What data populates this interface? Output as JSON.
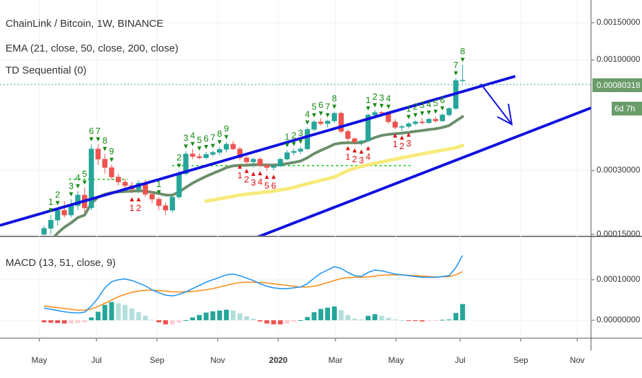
{
  "header": {
    "title": "ChainLink / Bitcoin, 1W, BINANCE",
    "ema_label": "EMA (21, close, 50, close, 200, close)",
    "td_label": "TD Sequential (0)",
    "macd_label": "MACD (13, 51, close, 9)"
  },
  "price_axis": {
    "ticks": [
      {
        "label": "0.00150000",
        "v": 0.0015
      },
      {
        "label": "0.00100000",
        "v": 0.001
      },
      {
        "label": "0.00030000",
        "v": 0.0003
      },
      {
        "label": "0.00015000",
        "v": 0.00015
      }
    ],
    "current_price": "0.00080318",
    "countdown": "6d 7h",
    "current_color": "#6a9c6a",
    "countdown_color": "#6a9c6a"
  },
  "macd_axis": {
    "ticks": [
      {
        "label": "0.00010000",
        "v": 0.0001
      },
      {
        "label": "0.00000000",
        "v": 0
      }
    ]
  },
  "time_axis": {
    "labels": [
      {
        "label": "May",
        "bold": false
      },
      {
        "label": "Jul",
        "bold": false
      },
      {
        "label": "Sep",
        "bold": false
      },
      {
        "label": "Nov",
        "bold": false
      },
      {
        "label": "2020",
        "bold": true
      },
      {
        "label": "Mar",
        "bold": false
      },
      {
        "label": "May",
        "bold": false
      },
      {
        "label": "Jul",
        "bold": false
      },
      {
        "label": "Sep",
        "bold": false
      },
      {
        "label": "Nov",
        "bold": false
      }
    ]
  },
  "colors": {
    "up": "#26a69a",
    "down": "#ef5350",
    "channel": "#1010e0",
    "ema_fast": "#6b8e6b",
    "ema_slow": "#f7ea7a",
    "macd": "#2196f3",
    "signal": "#ff8c1a",
    "buy": "#138a13",
    "sell": "#e01010"
  },
  "chart_data": {
    "type": "candlestick",
    "candles": [
      [
        0.00015,
        0.000165,
        0.00014,
        0.00016
      ],
      [
        0.00016,
        0.000185,
        0.00015,
        0.000175
      ],
      [
        0.000175,
        0.0002,
        0.000165,
        0.000195
      ],
      [
        0.000195,
        0.000215,
        0.00018,
        0.000185
      ],
      [
        0.000185,
        0.00022,
        0.00018,
        0.000205
      ],
      [
        0.000205,
        0.00024,
        0.000195,
        0.00023
      ],
      [
        0.00023,
        0.00025,
        0.00019,
        0.0002
      ],
      [
        0.0002,
        0.0004,
        0.000195,
        0.00038
      ],
      [
        0.00038,
        0.0004,
        0.00032,
        0.00034
      ],
      [
        0.00034,
        0.00036,
        0.00029,
        0.00031
      ],
      [
        0.00031,
        0.00032,
        0.00027,
        0.00028
      ],
      [
        0.00028,
        0.00029,
        0.000255,
        0.000265
      ],
      [
        0.000265,
        0.000275,
        0.000245,
        0.000255
      ],
      [
        0.000255,
        0.000265,
        0.000235,
        0.000245
      ],
      [
        0.000245,
        0.00027,
        0.000235,
        0.000262
      ],
      [
        0.000262,
        0.000272,
        0.000225,
        0.000232
      ],
      [
        0.000232,
        0.00024,
        0.00021,
        0.00022
      ],
      [
        0.00022,
        0.000225,
        0.000195,
        0.000205
      ],
      [
        0.000205,
        0.000212,
        0.000185,
        0.000195
      ],
      [
        0.000195,
        0.00023,
        0.00019,
        0.000225
      ],
      [
        0.000225,
        0.0003,
        0.00022,
        0.00029
      ],
      [
        0.00029,
        0.00037,
        0.000285,
        0.00036
      ],
      [
        0.00036,
        0.00038,
        0.00034,
        0.00035
      ],
      [
        0.00035,
        0.000362,
        0.00034,
        0.000345
      ],
      [
        0.000345,
        0.000368,
        0.00034,
        0.000358
      ],
      [
        0.000358,
        0.000372,
        0.00035,
        0.000366
      ],
      [
        0.000366,
        0.000388,
        0.000355,
        0.000378
      ],
      [
        0.000378,
        0.00041,
        0.000365,
        0.0004
      ],
      [
        0.0004,
        0.000415,
        0.000375,
        0.00038
      ],
      [
        0.00038,
        0.00039,
        0.000335,
        0.000345
      ],
      [
        0.000345,
        0.000352,
        0.00032,
        0.00033
      ],
      [
        0.00033,
        0.000345,
        0.00031,
        0.00034
      ],
      [
        0.00034,
        0.000348,
        0.000312,
        0.000318
      ],
      [
        0.000318,
        0.000325,
        0.0003,
        0.00031
      ],
      [
        0.00031,
        0.00032,
        0.0003,
        0.000315
      ],
      [
        0.000315,
        0.000345,
        0.000312,
        0.00034
      ],
      [
        0.00034,
        0.000375,
        0.000335,
        0.000365
      ],
      [
        0.000365,
        0.00038,
        0.000355,
        0.00037
      ],
      [
        0.00037,
        0.00039,
        0.00036,
        0.00038
      ],
      [
        0.00038,
        0.00048,
        0.000375,
        0.00047
      ],
      [
        0.00047,
        0.00052,
        0.00046,
        0.00051
      ],
      [
        0.00051,
        0.00053,
        0.00049,
        0.0005
      ],
      [
        0.0005,
        0.00052,
        0.00048,
        0.000515
      ],
      [
        0.000515,
        0.00057,
        0.000505,
        0.00056
      ],
      [
        0.00056,
        0.00057,
        0.00045,
        0.00046
      ],
      [
        0.00046,
        0.00047,
        0.00041,
        0.000425
      ],
      [
        0.000425,
        0.00043,
        0.0004,
        0.00041
      ],
      [
        0.00041,
        0.00042,
        0.000395,
        0.000415
      ],
      [
        0.000415,
        0.00056,
        0.00041,
        0.00055
      ],
      [
        0.00055,
        0.00058,
        0.00054,
        0.000565
      ],
      [
        0.000565,
        0.000575,
        0.000545,
        0.00056
      ],
      [
        0.00056,
        0.00057,
        0.0005,
        0.00051
      ],
      [
        0.00051,
        0.000525,
        0.00047,
        0.00048
      ],
      [
        0.00048,
        0.000495,
        0.00046,
        0.000485
      ],
      [
        0.000485,
        0.00051,
        0.000475,
        0.0005
      ],
      [
        0.0005,
        0.00052,
        0.00049,
        0.00051
      ],
      [
        0.00051,
        0.00053,
        0.000495,
        0.000505
      ],
      [
        0.000505,
        0.000535,
        0.0005,
        0.000525
      ],
      [
        0.000525,
        0.00054,
        0.000505,
        0.000515
      ],
      [
        0.000515,
        0.00056,
        0.00051,
        0.00055
      ],
      [
        0.00055,
        0.0006,
        0.00054,
        0.00059
      ],
      [
        0.00059,
        0.00082,
        0.00058,
        0.0008
      ],
      [
        0.0008,
        0.00095,
        0.00078,
        0.000803
      ]
    ],
    "ema_fast": [
      0.00013,
      0.00014,
      0.000152,
      0.000162,
      0.00017,
      0.00018,
      0.000185,
      0.00021,
      0.000225,
      0.000232,
      0.000236,
      0.000238,
      0.000239,
      0.00024,
      0.000241,
      0.00024,
      0.000237,
      0.000234,
      0.00023,
      0.00023,
      0.000238,
      0.00025,
      0.000262,
      0.000272,
      0.000282,
      0.000291,
      0.0003,
      0.00031,
      0.000316,
      0.000318,
      0.000318,
      0.00032,
      0.00032,
      0.000319,
      0.000319,
      0.00032,
      0.000324,
      0.000328,
      0.000333,
      0.000345,
      0.000361,
      0.000374,
      0.000386,
      0.0004,
      0.000405,
      0.000406,
      0.000406,
      0.000406,
      0.000418,
      0.00043,
      0.00044,
      0.000445,
      0.000448,
      0.000451,
      0.000455,
      0.00046,
      0.000464,
      0.000469,
      0.000473,
      0.00048,
      0.00049,
      0.000515,
      0.00054
    ],
    "ema_slow_start": 24,
    "ema_slow": [
      0.000215,
      0.000218,
      0.000221,
      0.000224,
      0.000227,
      0.00023,
      0.000232,
      0.000234,
      0.000236,
      0.000238,
      0.00024,
      0.000243,
      0.000246,
      0.00025,
      0.000255,
      0.00026,
      0.000265,
      0.00027,
      0.000275,
      0.00028,
      0.00029,
      0.0003,
      0.000308,
      0.000314,
      0.00032,
      0.000325,
      0.00033,
      0.000335,
      0.00034,
      0.000345,
      0.00035,
      0.000355,
      0.00036,
      0.000365,
      0.00037,
      0.000375,
      0.00038,
      0.000385,
      0.000395
    ],
    "macd": [
      3e-05,
      2.7e-05,
      2.4e-05,
      2.1e-05,
      1.9e-05,
      1.8e-05,
      2e-05,
      3.5e-05,
      5.5e-05,
      8e-05,
      9.5e-05,
      0.0001,
      0.000102,
      9.8e-05,
      9.2e-05,
      8.5e-05,
      7.5e-05,
      6.8e-05,
      6.2e-05,
      6e-05,
      6.4e-05,
      7e-05,
      7.8e-05,
      8.6e-05,
      9.4e-05,
      0.0001,
      0.000106,
      0.000112,
      0.000114,
      0.00011,
      0.000104,
      9.8e-05,
      9e-05,
      8.4e-05,
      8e-05,
      7.8e-05,
      7.8e-05,
      8e-05,
      8.2e-05,
      9e-05,
      0.000104,
      0.000116,
      0.000124,
      0.000132,
      0.000128,
      0.000118,
      0.00011,
      0.000108,
      0.000118,
      0.000124,
      0.000122,
      0.000118,
      0.000114,
      0.000112,
      0.00011,
      0.000108,
      0.000106,
      0.000106,
      0.000106,
      0.000108,
      0.00011,
      0.00013,
      0.00016
    ],
    "signal": [
      3.5e-05,
      3.3e-05,
      3.1e-05,
      2.9e-05,
      2.7e-05,
      2.5e-05,
      2.5e-05,
      2.8e-05,
      3.4e-05,
      4.2e-05,
      5e-05,
      5.8e-05,
      6.4e-05,
      6.9e-05,
      7.2e-05,
      7.4e-05,
      7.4e-05,
      7.3e-05,
      7.2e-05,
      7e-05,
      7e-05,
      7e-05,
      7.1e-05,
      7.3e-05,
      7.5e-05,
      7.8e-05,
      8.2e-05,
      8.6e-05,
      9e-05,
      9.3e-05,
      9.4e-05,
      9.4e-05,
      9.3e-05,
      9.2e-05,
      9e-05,
      8.8e-05,
      8.6e-05,
      8.4e-05,
      8.2e-05,
      8.2e-05,
      8.4e-05,
      8.8e-05,
      9.3e-05,
      9.8e-05,
      0.000103,
      0.000105,
      0.000106,
      0.000106,
      0.000107,
      0.000109,
      0.000111,
      0.000112,
      0.000112,
      0.000112,
      0.000111,
      0.00011,
      0.000109,
      0.000108,
      0.000107,
      0.000107,
      0.000108,
      0.000112,
      0.00012
    ],
    "td_labels_above": [
      {
        "i": 1,
        "t": "1"
      },
      {
        "i": 2,
        "t": "2"
      },
      {
        "i": 4,
        "t": "3"
      },
      {
        "i": 5,
        "t": "4"
      },
      {
        "i": 6,
        "t": "5"
      },
      {
        "i": 7,
        "t": "6"
      },
      {
        "i": 8,
        "t": "7"
      },
      {
        "i": 9,
        "t": "8"
      },
      {
        "i": 10,
        "t": "9"
      },
      {
        "i": 17,
        "t": "1"
      },
      {
        "i": 20,
        "t": "2"
      },
      {
        "i": 21,
        "t": "3"
      },
      {
        "i": 22,
        "t": "4"
      },
      {
        "i": 23,
        "t": "5"
      },
      {
        "i": 24,
        "t": "6"
      },
      {
        "i": 25,
        "t": "7"
      },
      {
        "i": 26,
        "t": "8"
      },
      {
        "i": 27,
        "t": "9"
      },
      {
        "i": 36,
        "t": "1"
      },
      {
        "i": 37,
        "t": "2"
      },
      {
        "i": 38,
        "t": "3"
      },
      {
        "i": 39,
        "t": "4"
      },
      {
        "i": 40,
        "t": "5"
      },
      {
        "i": 41,
        "t": "6"
      },
      {
        "i": 42,
        "t": "7"
      },
      {
        "i": 43,
        "t": "8"
      },
      {
        "i": 48,
        "t": "1"
      },
      {
        "i": 49,
        "t": "2"
      },
      {
        "i": 50,
        "t": "3"
      },
      {
        "i": 51,
        "t": "4"
      },
      {
        "i": 54,
        "t": "1"
      },
      {
        "i": 55,
        "t": "2"
      },
      {
        "i": 56,
        "t": "3"
      },
      {
        "i": 57,
        "t": "4"
      },
      {
        "i": 58,
        "t": "5"
      },
      {
        "i": 59,
        "t": "6"
      },
      {
        "i": 61,
        "t": "7"
      },
      {
        "i": 62,
        "t": "8"
      }
    ],
    "td_labels_below": [
      {
        "i": 13,
        "t": "1"
      },
      {
        "i": 14,
        "t": "2"
      },
      {
        "i": 29,
        "t": "1"
      },
      {
        "i": 30,
        "t": "2"
      },
      {
        "i": 31,
        "t": "3"
      },
      {
        "i": 32,
        "t": "4"
      },
      {
        "i": 33,
        "t": "5"
      },
      {
        "i": 34,
        "t": "6"
      },
      {
        "i": 45,
        "t": "1"
      },
      {
        "i": 46,
        "t": "2"
      },
      {
        "i": 47,
        "t": "3"
      },
      {
        "i": 48,
        "t": "4"
      },
      {
        "i": 52,
        "t": "1"
      },
      {
        "i": 53,
        "t": "2"
      },
      {
        "i": 54,
        "t": "3"
      }
    ]
  }
}
